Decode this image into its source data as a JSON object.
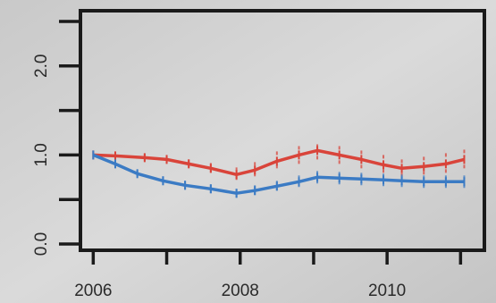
{
  "chart_data": {
    "type": "line",
    "x_ticks": [
      2006,
      2008,
      2010
    ],
    "x_tick_labels": [
      "2006",
      "2008",
      "2010"
    ],
    "y_ticks": [
      0.0,
      0.5,
      1.0,
      1.5,
      2.0,
      2.5
    ],
    "y_tick_labels": [
      "0.0",
      "1.0",
      "2.0"
    ],
    "y_labeled_ticks": [
      0.0,
      1.0,
      2.0
    ],
    "xlim": [
      2005.85,
      2011.3
    ],
    "ylim": [
      -0.05,
      2.6
    ],
    "grid": false,
    "series": [
      {
        "color": "#d9443a",
        "x": [
          2006,
          2006.3,
          2006.7,
          2007.0,
          2007.3,
          2007.6,
          2007.95,
          2008.2,
          2008.5,
          2008.8,
          2009.05,
          2009.35,
          2009.65,
          2009.95,
          2010.2,
          2010.5,
          2010.8,
          2011.05
        ],
        "values": [
          1.0,
          0.99,
          0.97,
          0.95,
          0.9,
          0.85,
          0.78,
          0.83,
          0.93,
          1.0,
          1.05,
          1.0,
          0.95,
          0.89,
          0.85,
          0.87,
          0.9,
          0.95
        ],
        "ci_points": [
          {
            "x": 2006.3,
            "lo": 0.97,
            "hi": 1.02
          },
          {
            "x": 2006.7,
            "lo": 0.93,
            "hi": 1.01
          },
          {
            "x": 2007.0,
            "lo": 0.91,
            "hi": 0.99
          },
          {
            "x": 2007.3,
            "lo": 0.86,
            "hi": 0.95
          },
          {
            "x": 2007.6,
            "lo": 0.8,
            "hi": 0.91
          },
          {
            "x": 2007.95,
            "lo": 0.72,
            "hi": 0.86
          },
          {
            "x": 2008.2,
            "lo": 0.76,
            "hi": 0.92
          },
          {
            "x": 2008.5,
            "lo": 0.85,
            "hi": 1.04
          },
          {
            "x": 2008.8,
            "lo": 0.9,
            "hi": 1.1
          },
          {
            "x": 2009.05,
            "lo": 0.95,
            "hi": 1.12
          },
          {
            "x": 2009.35,
            "lo": 0.9,
            "hi": 1.1
          },
          {
            "x": 2009.65,
            "lo": 0.85,
            "hi": 1.05
          },
          {
            "x": 2009.95,
            "lo": 0.8,
            "hi": 1.0
          },
          {
            "x": 2010.2,
            "lo": 0.76,
            "hi": 0.95
          },
          {
            "x": 2010.5,
            "lo": 0.78,
            "hi": 0.98
          },
          {
            "x": 2010.8,
            "lo": 0.8,
            "hi": 1.02
          },
          {
            "x": 2011.05,
            "lo": 0.85,
            "hi": 1.06
          }
        ]
      },
      {
        "color": "#3b7bc4",
        "x": [
          2006,
          2006.3,
          2006.6,
          2006.95,
          2007.25,
          2007.6,
          2007.95,
          2008.2,
          2008.5,
          2008.8,
          2009.05,
          2009.35,
          2009.65,
          2009.95,
          2010.2,
          2010.5,
          2010.8,
          2011.05
        ],
        "values": [
          1.0,
          0.9,
          0.79,
          0.71,
          0.66,
          0.62,
          0.57,
          0.6,
          0.65,
          0.7,
          0.75,
          0.74,
          0.73,
          0.72,
          0.71,
          0.7,
          0.7,
          0.7
        ],
        "ci_points": [
          {
            "x": 2006.3,
            "lo": 0.87,
            "hi": 0.93
          },
          {
            "x": 2006.6,
            "lo": 0.76,
            "hi": 0.83
          },
          {
            "x": 2006.95,
            "lo": 0.67,
            "hi": 0.76
          },
          {
            "x": 2007.25,
            "lo": 0.61,
            "hi": 0.71
          },
          {
            "x": 2007.6,
            "lo": 0.57,
            "hi": 0.67
          },
          {
            "x": 2007.95,
            "lo": 0.52,
            "hi": 0.62
          },
          {
            "x": 2008.2,
            "lo": 0.55,
            "hi": 0.66
          },
          {
            "x": 2008.5,
            "lo": 0.6,
            "hi": 0.71
          },
          {
            "x": 2008.8,
            "lo": 0.64,
            "hi": 0.77
          },
          {
            "x": 2009.05,
            "lo": 0.68,
            "hi": 0.82
          },
          {
            "x": 2009.35,
            "lo": 0.67,
            "hi": 0.81
          },
          {
            "x": 2009.65,
            "lo": 0.66,
            "hi": 0.8
          },
          {
            "x": 2009.95,
            "lo": 0.65,
            "hi": 0.79
          },
          {
            "x": 2010.2,
            "lo": 0.64,
            "hi": 0.78
          },
          {
            "x": 2010.5,
            "lo": 0.63,
            "hi": 0.77
          },
          {
            "x": 2010.8,
            "lo": 0.63,
            "hi": 0.77
          },
          {
            "x": 2011.05,
            "lo": 0.63,
            "hi": 0.77
          }
        ]
      }
    ]
  }
}
